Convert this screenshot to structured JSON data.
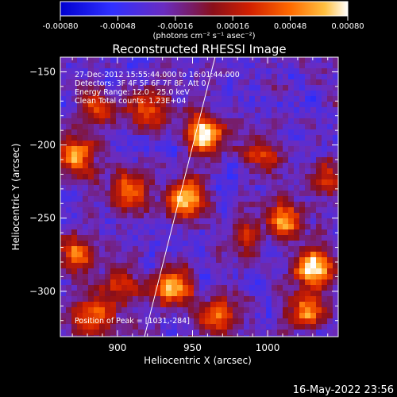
{
  "colorbar": {
    "ticks": [
      "-0.00080",
      "-0.00048",
      "-0.00016",
      "0.00016",
      "0.00048",
      "0.00080"
    ],
    "unit_label": "(photons cm⁻² s⁻¹ asec⁻²)",
    "range": [
      -0.0008,
      0.0008
    ]
  },
  "title": "Reconstructed RHESSI Image",
  "info_lines": [
    "27-Dec-2012 15:55:44.000 to 16:01:44.000",
    "Detectors: 3F 4F 5F 6F 7F 8F, Att 0",
    "Energy Range: 12.0 - 25.0 keV",
    "Clean     Total counts: 1.23E+04"
  ],
  "peak_label": "Position of Peak = [1031,-284]",
  "timestamp": "16-May-2022 23:56",
  "chart_data": {
    "type": "heatmap",
    "title": "Reconstructed RHESSI Image",
    "xlabel": "Heliocentric X (arcsec)",
    "ylabel": "Heliocentric Y (arcsec)",
    "xlim": [
      862,
      1047
    ],
    "ylim": [
      -331,
      -140
    ],
    "x_ticks": [
      900,
      950,
      1000
    ],
    "y_ticks": [
      -150,
      -200,
      -250,
      -300
    ],
    "x_tick_labels": [
      "900",
      "950",
      "1000"
    ],
    "y_tick_labels": [
      "−150",
      "−200",
      "−250",
      "−300"
    ],
    "limb_line": [
      [
        918,
        -331
      ],
      [
        965,
        -140
      ]
    ],
    "peak": [
      1031,
      -284
    ],
    "bright_sources": [
      {
        "x": 958,
        "y": -193,
        "value": 0.00075
      },
      {
        "x": 946,
        "y": -236,
        "value": 0.0007
      },
      {
        "x": 937,
        "y": -298,
        "value": 0.00065
      },
      {
        "x": 1031,
        "y": -284,
        "value": 0.0008
      },
      {
        "x": 1013,
        "y": -252,
        "value": 0.0006
      },
      {
        "x": 1025,
        "y": -313,
        "value": 0.00055
      },
      {
        "x": 871,
        "y": -275,
        "value": 0.0005
      },
      {
        "x": 873,
        "y": -207,
        "value": 0.0006
      },
      {
        "x": 886,
        "y": -173,
        "value": 0.00045
      },
      {
        "x": 921,
        "y": -176,
        "value": 0.0005
      },
      {
        "x": 908,
        "y": -232,
        "value": 0.0006
      },
      {
        "x": 883,
        "y": -318,
        "value": 0.0005
      },
      {
        "x": 967,
        "y": -317,
        "value": 0.00045
      },
      {
        "x": 996,
        "y": -206,
        "value": 0.00035
      },
      {
        "x": 1040,
        "y": -223,
        "value": 0.0004
      },
      {
        "x": 901,
        "y": -296,
        "value": 0.0004
      },
      {
        "x": 985,
        "y": -262,
        "value": 0.0003
      }
    ]
  }
}
